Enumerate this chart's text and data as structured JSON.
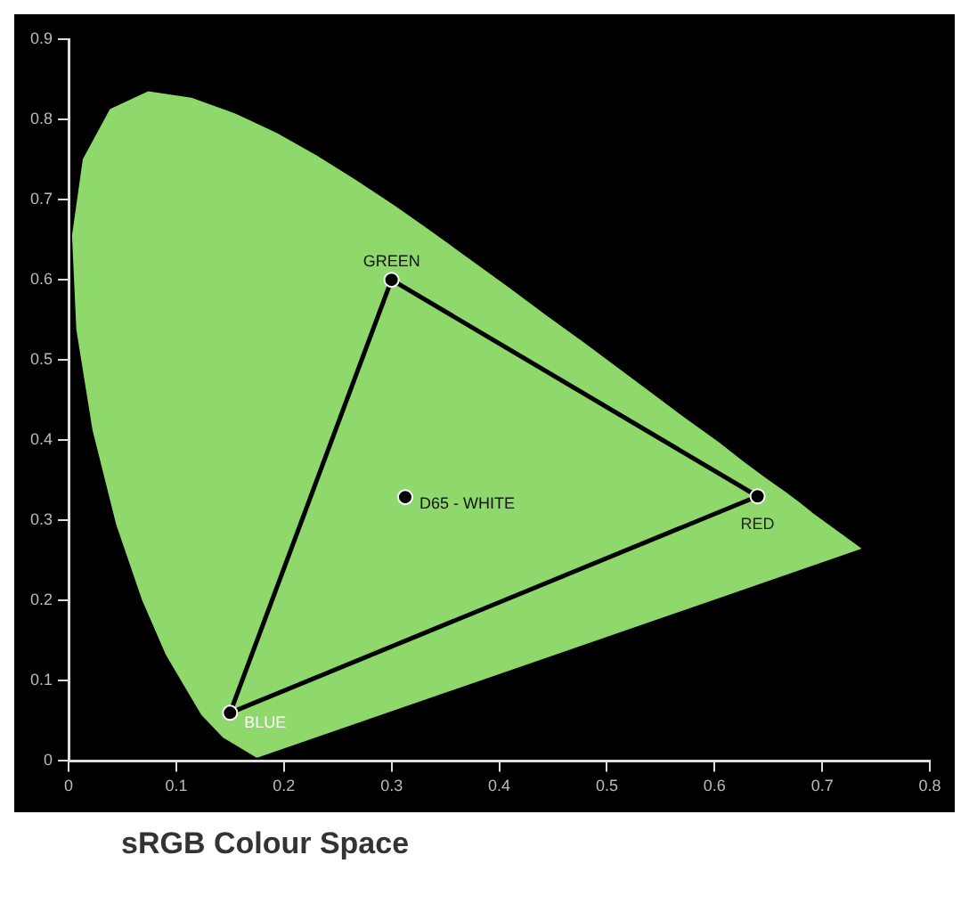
{
  "chart_data": {
    "type": "scatter",
    "title": "sRGB Colour Space",
    "xlim": [
      0,
      0.8
    ],
    "ylim": [
      0,
      0.9
    ],
    "xticks": [
      0,
      0.1,
      0.2,
      0.3,
      0.4,
      0.5,
      0.6,
      0.7,
      0.8
    ],
    "yticks": [
      0,
      0.1,
      0.2,
      0.3,
      0.4,
      0.5,
      0.6,
      0.7,
      0.8,
      0.9
    ],
    "grid": false,
    "legend": false,
    "series": [
      {
        "type": "area",
        "color": "#8ed86c",
        "x": [
          0.175,
          0.144,
          0.124,
          0.091,
          0.069,
          0.045,
          0.023,
          0.008,
          0.004,
          0.014,
          0.039,
          0.074,
          0.114,
          0.155,
          0.193,
          0.23,
          0.266,
          0.302,
          0.337,
          0.373,
          0.409,
          0.444,
          0.479,
          0.512,
          0.545,
          0.575,
          0.603,
          0.627,
          0.648,
          0.666,
          0.68,
          0.691,
          0.735,
          0.175
        ],
        "values": [
          0.005,
          0.03,
          0.058,
          0.133,
          0.201,
          0.295,
          0.413,
          0.538,
          0.655,
          0.75,
          0.812,
          0.834,
          0.826,
          0.806,
          0.782,
          0.754,
          0.724,
          0.692,
          0.659,
          0.624,
          0.589,
          0.554,
          0.52,
          0.487,
          0.454,
          0.424,
          0.397,
          0.372,
          0.351,
          0.334,
          0.32,
          0.308,
          0.265,
          0.005
        ]
      },
      {
        "type": "line",
        "color": "#000000",
        "marker": "none",
        "x": [
          0.15,
          0.3
        ],
        "values": [
          0.06,
          0.6
        ]
      },
      {
        "type": "line",
        "color": "#000000",
        "marker": "none",
        "x": [
          0.3,
          0.64
        ],
        "values": [
          0.6,
          0.33
        ]
      },
      {
        "type": "line",
        "color": "#000000",
        "marker": "none",
        "x": [
          0.15,
          0.64
        ],
        "values": [
          0.06,
          0.33
        ]
      },
      {
        "color": "#000000",
        "marker": "circle",
        "x": [
          0.64,
          0.3,
          0.15,
          0.3127
        ],
        "values": [
          0.33,
          0.6,
          0.06,
          0.329
        ]
      }
    ],
    "annotations": [
      {
        "text": "RED",
        "x": 0.64,
        "y": 0.33
      },
      {
        "text": "GREEN",
        "x": 0.3,
        "y": 0.6
      },
      {
        "text": "BLUE",
        "x": 0.15,
        "y": 0.06
      },
      {
        "text": "D65 - WHITE",
        "x": 0.3127,
        "y": 0.329
      }
    ]
  }
}
